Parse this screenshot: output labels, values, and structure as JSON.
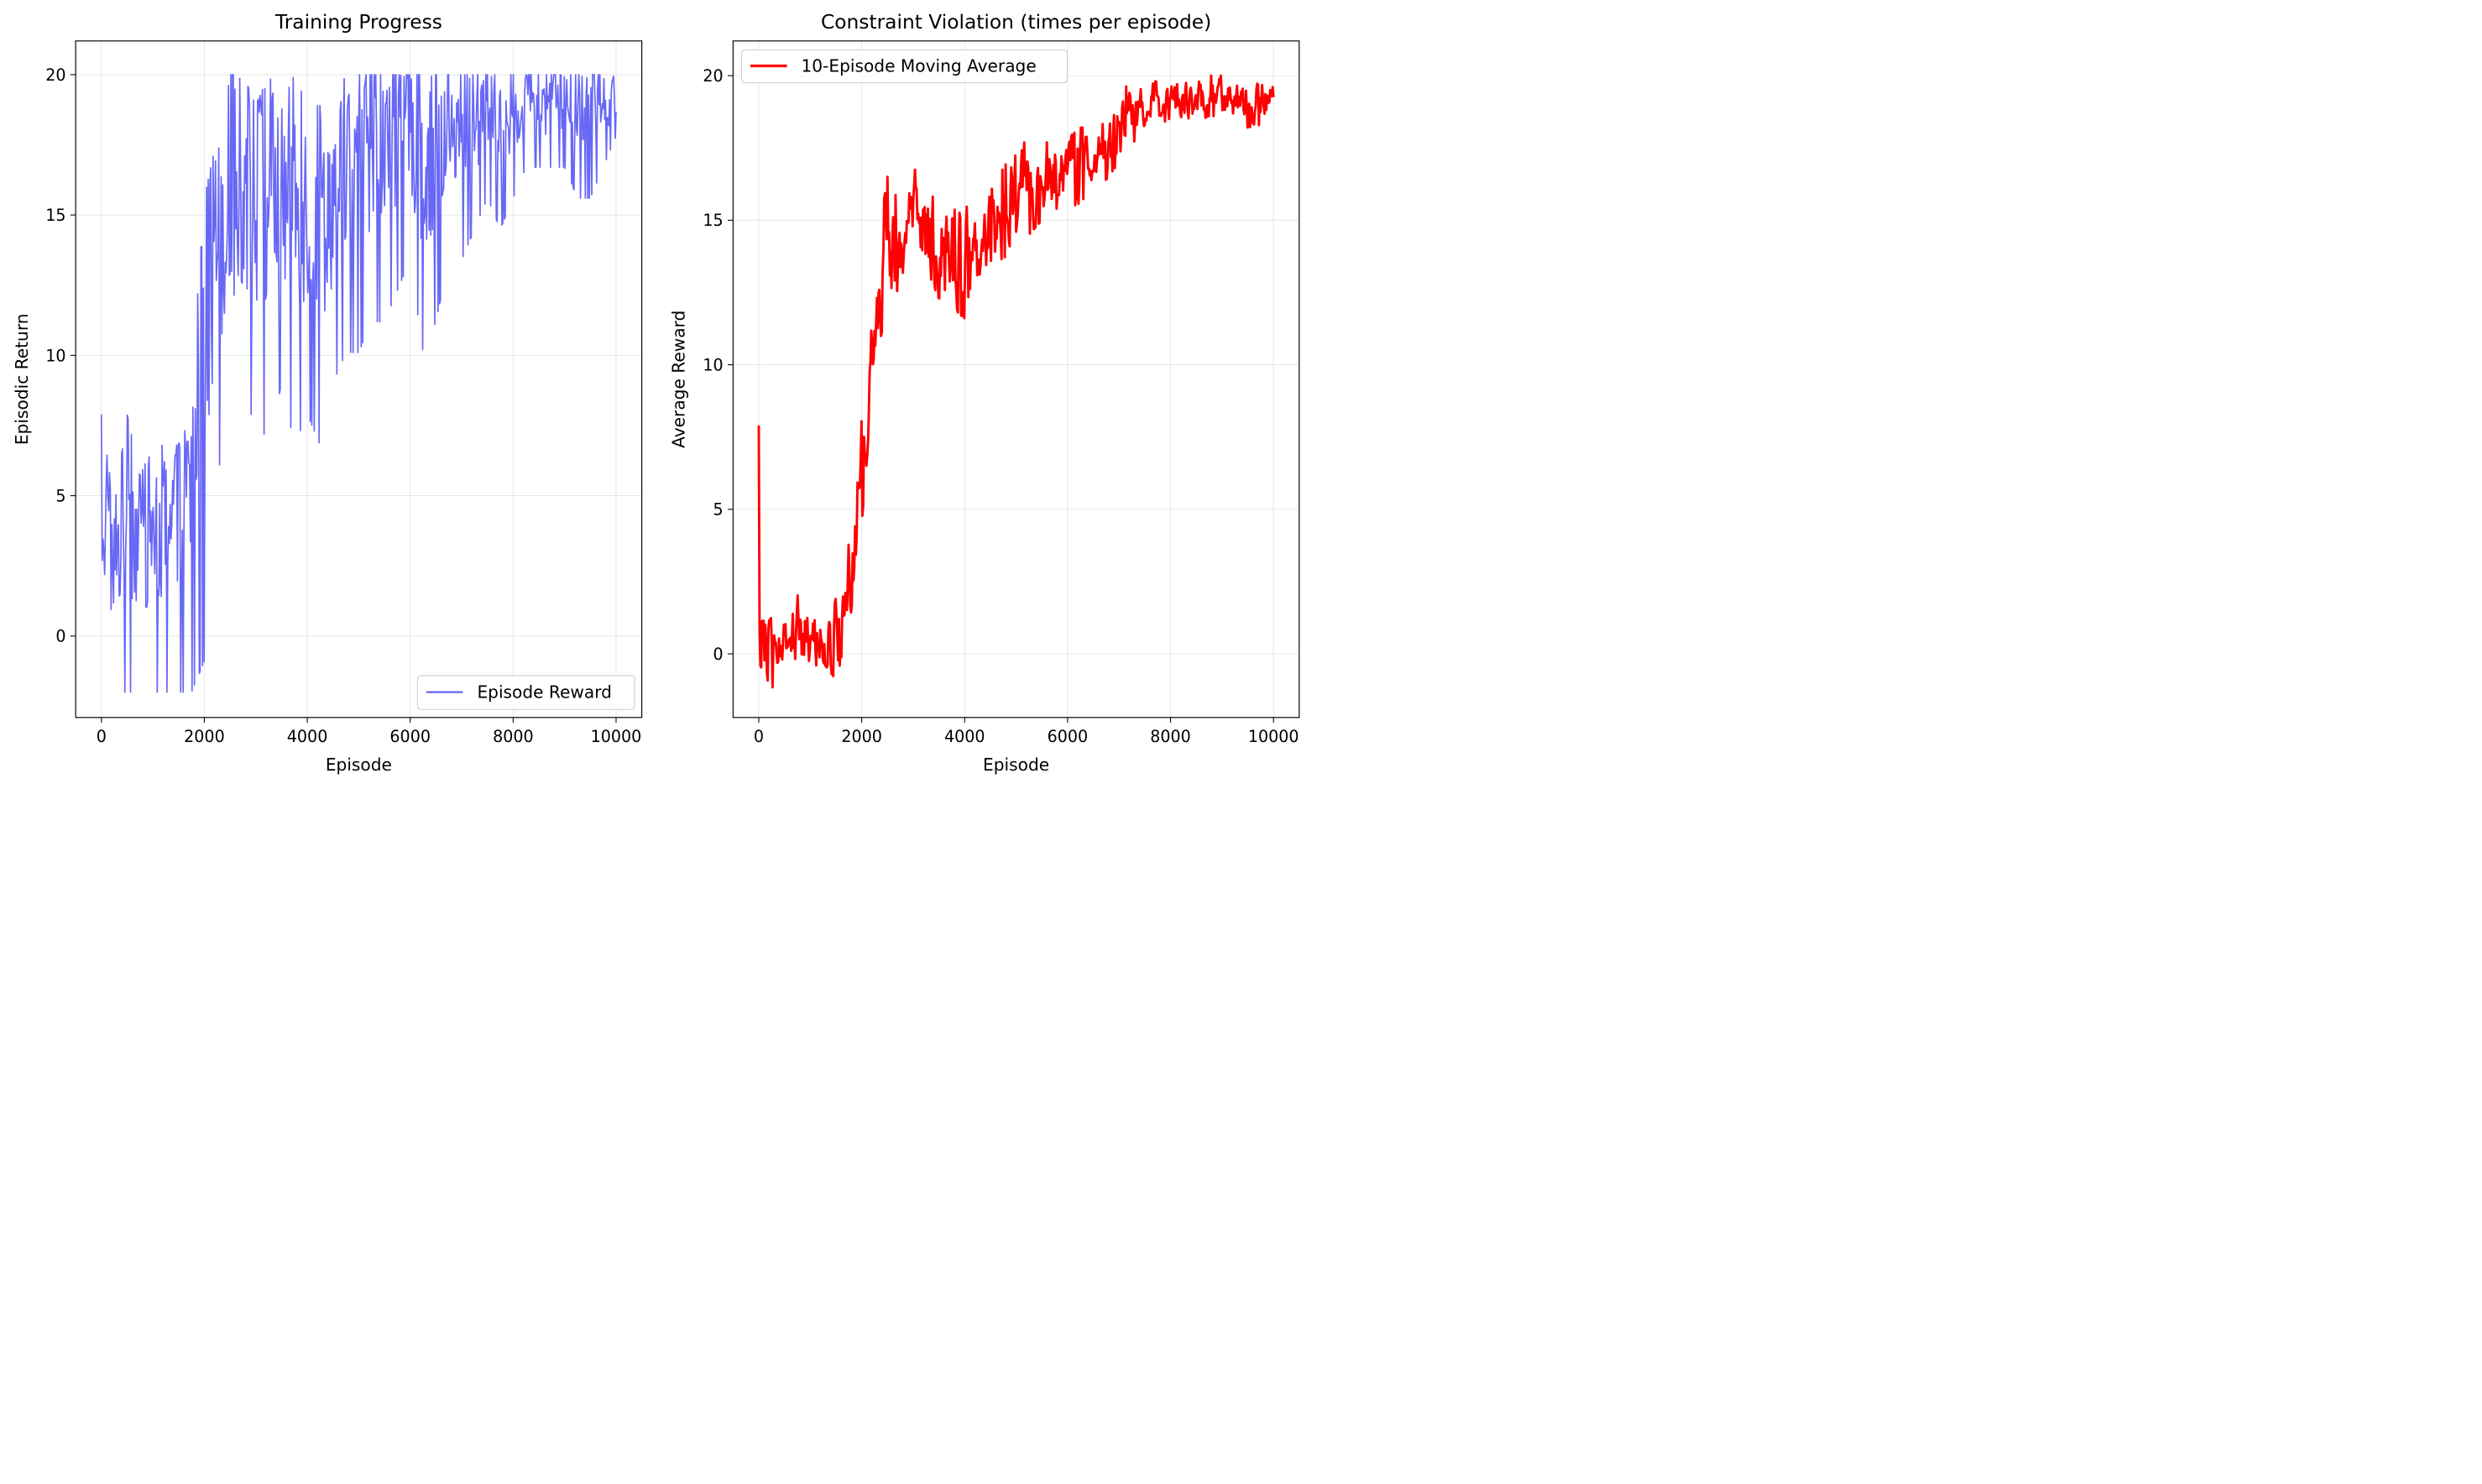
{
  "chart_data": [
    {
      "type": "line",
      "title": "Training Progress",
      "xlabel": "Episode",
      "ylabel": "Episodic Return",
      "xlim": [
        -500,
        10500
      ],
      "ylim": [
        -2.9,
        21.2
      ],
      "xticks": [
        0,
        2000,
        4000,
        6000,
        8000,
        10000
      ],
      "xtick_labels": [
        "0",
        "2000",
        "4000",
        "6000",
        "8000",
        "10000"
      ],
      "yticks": [
        0,
        5,
        10,
        15,
        20
      ],
      "ytick_labels": [
        "0",
        "5",
        "10",
        "15",
        "20"
      ],
      "grid": true,
      "legend_position": "lower right",
      "series": [
        {
          "name": "Episode Reward",
          "color": "#5b5bf5",
          "x": [
            0,
            250,
            500,
            750,
            1000,
            1250,
            1500,
            1750,
            2000,
            2250,
            2500,
            2750,
            3000,
            3250,
            3500,
            3750,
            4000,
            4250,
            4500,
            4750,
            5000,
            5250,
            5500,
            5750,
            6000,
            6250,
            6500,
            6750,
            7000,
            7250,
            7500,
            7750,
            8000,
            8250,
            8500,
            8750,
            9000,
            9250,
            9500,
            9750,
            10000
          ],
          "mean": [
            0.5,
            0.3,
            0.4,
            0.6,
            0.9,
            1.0,
            1.2,
            2.0,
            4.8,
            12.0,
            13.5,
            14.0,
            14.5,
            14.8,
            14.0,
            13.8,
            14.0,
            13.8,
            14.5,
            15.2,
            16.0,
            16.2,
            16.5,
            16.8,
            17.0,
            17.2,
            17.5,
            17.8,
            18.5,
            18.8,
            19.0,
            19.2,
            19.3,
            19.4,
            19.5,
            19.5,
            19.5,
            19.5,
            19.5,
            19.5,
            19.5
          ],
          "upper": [
            7.9,
            4.6,
            7.9,
            5.7,
            6.8,
            6.8,
            6.8,
            9.0,
            15.6,
            17.8,
            20.0,
            20.0,
            18.9,
            20.0,
            18.9,
            20.0,
            18.9,
            18.9,
            18.9,
            20.0,
            20.0,
            20.0,
            20.0,
            20.0,
            20.0,
            20.0,
            20.0,
            20.0,
            20.0,
            20.0,
            20.0,
            20.0,
            20.0,
            20.0,
            20.0,
            20.0,
            20.0,
            20.0,
            20.0,
            20.0,
            20.0
          ],
          "lower": [
            -2.0,
            -2.0,
            -2.0,
            -2.0,
            -2.0,
            -2.0,
            -2.0,
            -2.0,
            -0.9,
            5.7,
            7.9,
            7.9,
            7.9,
            6.8,
            9.0,
            6.8,
            7.9,
            6.8,
            9.0,
            10.1,
            10.1,
            11.2,
            11.2,
            12.3,
            13.4,
            10.1,
            11.2,
            13.4,
            13.4,
            14.5,
            15.6,
            14.5,
            15.6,
            16.7,
            16.7,
            16.7,
            16.7,
            15.6,
            15.6,
            16.7,
            17.8
          ]
        }
      ]
    },
    {
      "type": "line",
      "title": "Constraint Violation (times per episode)",
      "xlabel": "Episode",
      "ylabel": "Average Reward",
      "xlim": [
        -500,
        10500
      ],
      "ylim": [
        -2.2,
        21.2
      ],
      "xticks": [
        0,
        2000,
        4000,
        6000,
        8000,
        10000
      ],
      "xtick_labels": [
        "0",
        "2000",
        "4000",
        "6000",
        "8000",
        "10000"
      ],
      "yticks": [
        0,
        5,
        10,
        15,
        20
      ],
      "ytick_labels": [
        "0",
        "5",
        "10",
        "15",
        "20"
      ],
      "grid": true,
      "legend_position": "upper left",
      "series": [
        {
          "name": "10-Episode Moving Average",
          "color": "#ff0000",
          "x": [
            0,
            250,
            500,
            750,
            1000,
            1250,
            1500,
            1750,
            2000,
            2250,
            2500,
            2750,
            3000,
            3250,
            3500,
            3750,
            4000,
            4250,
            4500,
            4750,
            5000,
            5250,
            5500,
            5750,
            6000,
            6250,
            6500,
            6750,
            7000,
            7250,
            7500,
            7750,
            8000,
            8250,
            8500,
            8750,
            9000,
            9250,
            9500,
            9750,
            10000
          ],
          "mean": [
            0.2,
            -0.1,
            0.2,
            0.6,
            0.5,
            0.6,
            0.3,
            1.8,
            6.5,
            11.5,
            13.5,
            14.0,
            15.0,
            14.5,
            14.0,
            13.8,
            13.5,
            13.5,
            14.5,
            15.0,
            16.0,
            16.3,
            16.5,
            16.8,
            17.0,
            17.2,
            17.4,
            17.6,
            18.2,
            18.8,
            19.0,
            19.0,
            19.1,
            19.2,
            19.2,
            19.3,
            19.3,
            19.2,
            19.1,
            19.2,
            19.2
          ],
          "upper": [
            7.9,
            1.1,
            1.0,
            2.8,
            1.3,
            2.1,
            2.4,
            3.8,
            8.5,
            13.5,
            16.5,
            15.5,
            16.8,
            16.4,
            16.1,
            15.8,
            15.6,
            15.5,
            16.0,
            16.8,
            17.5,
            17.8,
            18.3,
            18.0,
            18.1,
            18.2,
            18.2,
            18.8,
            19.4,
            19.8,
            19.8,
            19.8,
            19.8,
            19.9,
            20.0,
            20.0,
            20.0,
            19.9,
            19.8,
            19.7,
            19.6
          ],
          "lower": [
            -0.3,
            -1.2,
            -0.6,
            -0.4,
            -0.5,
            -0.3,
            -0.9,
            0.8,
            4.5,
            10.0,
            12.0,
            11.8,
            14.0,
            13.0,
            12.3,
            12.0,
            11.6,
            12.0,
            13.0,
            13.6,
            14.6,
            14.5,
            15.0,
            15.4,
            15.4,
            15.6,
            16.2,
            16.4,
            17.0,
            17.6,
            18.3,
            18.2,
            18.4,
            18.6,
            18.4,
            18.6,
            18.6,
            18.6,
            18.2,
            18.3,
            18.5
          ]
        }
      ]
    }
  ]
}
